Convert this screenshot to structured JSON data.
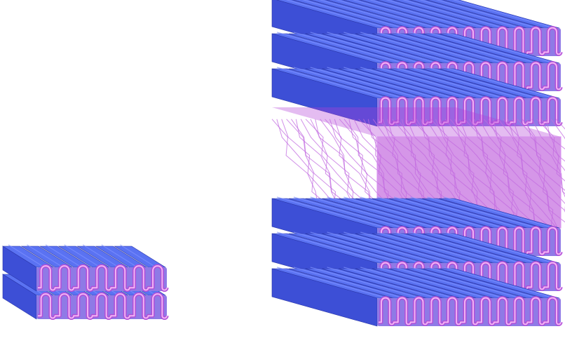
{
  "colors": {
    "background": "#ffffff",
    "lamella_top": "#5a72f2",
    "lamella_side": "#3d4fd6",
    "lamella_edge": "#2a36a8",
    "front_face": "#8f7ae6",
    "serpentine_outer": "#b04ed8",
    "serpentine_inner": "#f2b4f4",
    "interlayer_fill": "#b23fd6",
    "interlayer_stroke": "#c26be0"
  },
  "small_block": {
    "layer_count": 2,
    "rod_count": 7,
    "serpentine_periods": 7
  },
  "large_block": {
    "layer_count": 6,
    "rod_count": 11,
    "serpentine_periods": 11,
    "interlayer_count": 1
  }
}
